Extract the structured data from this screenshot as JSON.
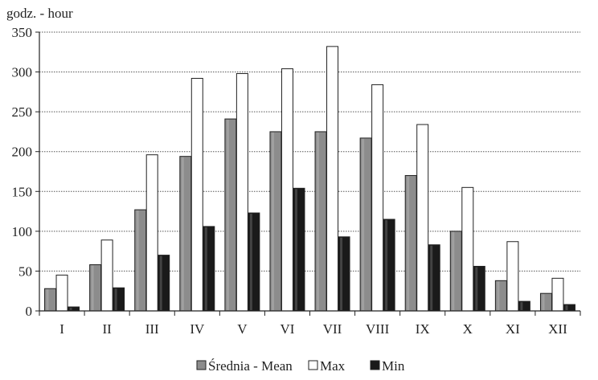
{
  "chart_data": {
    "type": "bar",
    "unit_label": "godz. - hour",
    "categories": [
      "I",
      "II",
      "III",
      "IV",
      "V",
      "VI",
      "VII",
      "VIII",
      "IX",
      "X",
      "XI",
      "XII"
    ],
    "series": [
      {
        "name": "Średnia - Mean",
        "color": "#8c8c8c",
        "values": [
          28,
          58,
          127,
          194,
          241,
          225,
          225,
          217,
          170,
          100,
          38,
          22
        ]
      },
      {
        "name": "Max",
        "color": "#ffffff",
        "values": [
          45,
          89,
          196,
          292,
          298,
          304,
          332,
          284,
          234,
          155,
          87,
          41
        ]
      },
      {
        "name": "Min",
        "color": "#1a1a1a",
        "values": [
          5,
          29,
          70,
          106,
          123,
          154,
          93,
          115,
          83,
          56,
          12,
          8
        ]
      }
    ],
    "ylim": [
      0,
      350
    ],
    "yticks": [
      0,
      50,
      100,
      150,
      200,
      250,
      300,
      350
    ],
    "grid": true,
    "legend_position": "bottom"
  }
}
